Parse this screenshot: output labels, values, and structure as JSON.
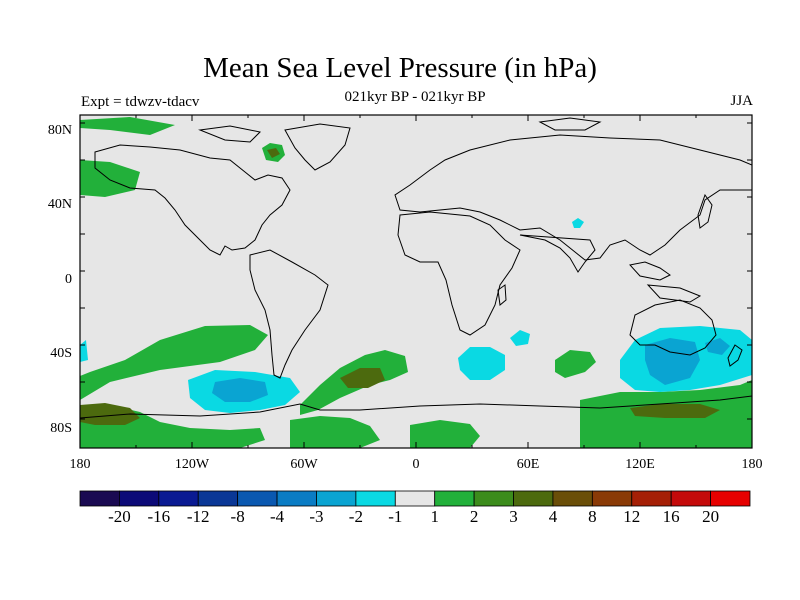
{
  "header": {
    "title": "Mean Sea Level Pressure (in hPa)",
    "subtitle": "021kyr BP - 021kyr BP",
    "experiment": "Expt = tdwzv-tdacv",
    "season": "JJA"
  },
  "axes": {
    "y_ticks": [
      "80N",
      "40N",
      "0",
      "40S",
      "80S"
    ],
    "x_ticks": [
      "180",
      "120W",
      "60W",
      "0",
      "60E",
      "120E",
      "180"
    ]
  },
  "colorbar": {
    "labels": [
      "-20",
      "-16",
      "-12",
      "-8",
      "-4",
      "-3",
      "-2",
      "-1",
      "1",
      "2",
      "3",
      "4",
      "8",
      "12",
      "16",
      "20"
    ],
    "colors": [
      "#1a0a52",
      "#0c0a78",
      "#0a1a92",
      "#0a3796",
      "#0a58b0",
      "#0a7cc4",
      "#0aa4d2",
      "#0ad9e3",
      "#e6e6e6",
      "#22b03a",
      "#3c8c1c",
      "#4c6a0e",
      "#6a4e08",
      "#8a3a06",
      "#a52006",
      "#c40a0a",
      "#e60000"
    ]
  },
  "map": {
    "background_color": "#e6e6e6",
    "land_outline_color": "#000000",
    "lon_range": [
      -180,
      180
    ],
    "lat_range": [
      -90,
      90
    ]
  }
}
